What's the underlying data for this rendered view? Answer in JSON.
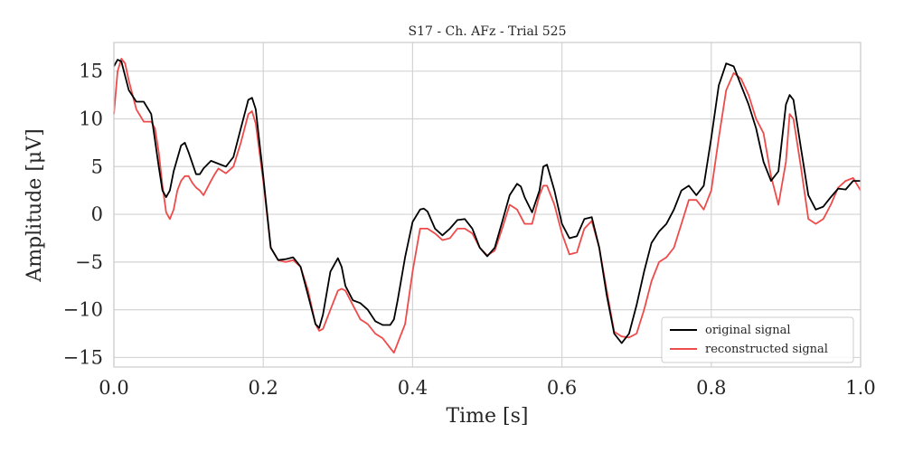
{
  "chart_data": {
    "type": "line",
    "title": "S17 - Ch. AFz - Trial 525",
    "xlabel": "Time [s]",
    "ylabel": "Amplitude [μV]",
    "xlim": [
      0.0,
      1.0
    ],
    "ylim": [
      -16,
      18
    ],
    "xticks": [
      0.0,
      0.2,
      0.4,
      0.6,
      0.8,
      1.0
    ],
    "xtick_labels": [
      "0.0",
      "0.2",
      "0.4",
      "0.6",
      "0.8",
      "1.0"
    ],
    "yticks": [
      -15,
      -10,
      -5,
      0,
      5,
      10,
      15
    ],
    "ytick_labels": [
      "−15",
      "−10",
      "−5",
      "0",
      "5",
      "10",
      "15"
    ],
    "grid": true,
    "legend_position": "lower-right",
    "series": [
      {
        "name": "original signal",
        "color": "#000000",
        "x": [
          0.0,
          0.005,
          0.01,
          0.02,
          0.03,
          0.04,
          0.05,
          0.06,
          0.065,
          0.07,
          0.075,
          0.08,
          0.09,
          0.095,
          0.1,
          0.11,
          0.115,
          0.12,
          0.13,
          0.14,
          0.15,
          0.16,
          0.17,
          0.18,
          0.185,
          0.19,
          0.2,
          0.21,
          0.22,
          0.23,
          0.24,
          0.25,
          0.26,
          0.27,
          0.275,
          0.28,
          0.29,
          0.3,
          0.305,
          0.31,
          0.32,
          0.33,
          0.34,
          0.35,
          0.36,
          0.37,
          0.375,
          0.38,
          0.39,
          0.4,
          0.41,
          0.415,
          0.42,
          0.43,
          0.44,
          0.45,
          0.46,
          0.47,
          0.48,
          0.49,
          0.5,
          0.51,
          0.52,
          0.53,
          0.54,
          0.545,
          0.55,
          0.56,
          0.57,
          0.575,
          0.58,
          0.59,
          0.6,
          0.61,
          0.62,
          0.63,
          0.64,
          0.65,
          0.66,
          0.67,
          0.68,
          0.69,
          0.7,
          0.71,
          0.72,
          0.73,
          0.74,
          0.75,
          0.76,
          0.77,
          0.78,
          0.79,
          0.8,
          0.81,
          0.82,
          0.83,
          0.84,
          0.85,
          0.86,
          0.87,
          0.88,
          0.89,
          0.9,
          0.905,
          0.91,
          0.92,
          0.93,
          0.94,
          0.95,
          0.96,
          0.97,
          0.98,
          0.99,
          1.0
        ],
        "y": [
          15.5,
          16.2,
          16.0,
          13.0,
          11.8,
          11.8,
          10.5,
          5.0,
          2.5,
          1.8,
          2.5,
          4.5,
          7.2,
          7.5,
          6.5,
          4.2,
          4.2,
          4.8,
          5.6,
          5.3,
          5.0,
          6.0,
          9.0,
          12.0,
          12.2,
          11.0,
          4.0,
          -3.5,
          -4.8,
          -4.7,
          -4.5,
          -5.5,
          -8.5,
          -11.5,
          -11.9,
          -10.5,
          -6.0,
          -4.6,
          -5.5,
          -7.5,
          -9.0,
          -9.3,
          -10.0,
          -11.2,
          -11.6,
          -11.6,
          -11.0,
          -9.0,
          -4.5,
          -0.8,
          0.5,
          0.6,
          0.3,
          -1.5,
          -2.2,
          -1.5,
          -0.6,
          -0.5,
          -1.5,
          -3.5,
          -4.4,
          -3.5,
          -0.8,
          2.0,
          3.2,
          2.9,
          1.8,
          0.2,
          2.5,
          5.0,
          5.2,
          2.5,
          -1.0,
          -2.5,
          -2.3,
          -0.5,
          -0.3,
          -3.5,
          -8.5,
          -12.5,
          -13.5,
          -12.5,
          -9.5,
          -6.0,
          -3.0,
          -1.8,
          -1.0,
          0.5,
          2.5,
          3.0,
          2.0,
          3.0,
          8.0,
          13.5,
          15.8,
          15.5,
          13.5,
          11.5,
          9.0,
          5.5,
          3.5,
          4.5,
          11.5,
          12.5,
          12.0,
          7.0,
          2.0,
          0.5,
          0.8,
          1.8,
          2.7,
          2.6,
          3.5,
          3.5
        ]
      },
      {
        "name": "reconstructed signal",
        "color": "#ee4b4b",
        "x": [
          0.0,
          0.005,
          0.01,
          0.015,
          0.02,
          0.03,
          0.04,
          0.05,
          0.055,
          0.06,
          0.065,
          0.07,
          0.075,
          0.08,
          0.085,
          0.09,
          0.095,
          0.1,
          0.105,
          0.11,
          0.115,
          0.12,
          0.13,
          0.135,
          0.14,
          0.15,
          0.16,
          0.17,
          0.18,
          0.185,
          0.19,
          0.2,
          0.21,
          0.22,
          0.23,
          0.24,
          0.25,
          0.26,
          0.27,
          0.275,
          0.28,
          0.29,
          0.3,
          0.305,
          0.31,
          0.32,
          0.33,
          0.34,
          0.35,
          0.36,
          0.37,
          0.375,
          0.38,
          0.39,
          0.4,
          0.41,
          0.42,
          0.43,
          0.44,
          0.45,
          0.46,
          0.47,
          0.48,
          0.49,
          0.5,
          0.51,
          0.52,
          0.53,
          0.54,
          0.55,
          0.56,
          0.57,
          0.575,
          0.58,
          0.59,
          0.6,
          0.61,
          0.62,
          0.63,
          0.64,
          0.65,
          0.66,
          0.67,
          0.68,
          0.69,
          0.7,
          0.71,
          0.72,
          0.73,
          0.74,
          0.75,
          0.76,
          0.77,
          0.78,
          0.79,
          0.8,
          0.81,
          0.82,
          0.83,
          0.84,
          0.85,
          0.86,
          0.87,
          0.88,
          0.89,
          0.9,
          0.905,
          0.91,
          0.92,
          0.93,
          0.94,
          0.95,
          0.96,
          0.97,
          0.98,
          0.99,
          1.0
        ],
        "y": [
          10.5,
          15.0,
          16.3,
          15.8,
          14.0,
          11.0,
          9.7,
          9.7,
          9.0,
          6.5,
          3.0,
          0.2,
          -0.5,
          0.5,
          2.5,
          3.5,
          4.0,
          4.0,
          3.3,
          2.8,
          2.5,
          2.0,
          3.5,
          4.2,
          4.8,
          4.3,
          5.0,
          7.5,
          10.5,
          10.8,
          9.5,
          3.5,
          -3.5,
          -4.8,
          -5.0,
          -4.8,
          -5.5,
          -8.0,
          -11.5,
          -12.2,
          -12.0,
          -10.0,
          -8.0,
          -7.8,
          -8.0,
          -9.5,
          -11.0,
          -11.5,
          -12.5,
          -13.0,
          -14.0,
          -14.5,
          -13.5,
          -11.5,
          -6.0,
          -1.5,
          -1.5,
          -2.0,
          -2.7,
          -2.5,
          -1.5,
          -1.5,
          -2.0,
          -3.5,
          -4.3,
          -3.8,
          -1.5,
          1.0,
          0.5,
          -1.0,
          -1.0,
          2.0,
          3.0,
          3.0,
          1.0,
          -2.0,
          -4.2,
          -4.0,
          -1.5,
          -0.7,
          -3.5,
          -8.0,
          -12.3,
          -12.8,
          -12.9,
          -12.5,
          -10.0,
          -7.0,
          -5.0,
          -4.5,
          -3.5,
          -1.0,
          1.5,
          1.5,
          0.5,
          2.5,
          8.0,
          13.0,
          14.8,
          14.2,
          12.5,
          10.0,
          8.5,
          4.0,
          1.0,
          5.5,
          10.5,
          10.0,
          5.0,
          -0.5,
          -1.0,
          -0.5,
          1.0,
          2.8,
          3.5,
          3.8,
          2.5
        ]
      }
    ]
  }
}
